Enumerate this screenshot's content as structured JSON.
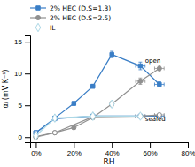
{
  "chart_data": {
    "type": "line",
    "xlabel": "RH",
    "ylabel": "αᵢ (mV K⁻¹)",
    "xlim": [
      -3,
      80
    ],
    "ylim": [
      -0.8,
      16
    ],
    "xticks": [
      {
        "value": 0,
        "label": "0%"
      },
      {
        "value": 20,
        "label": "20%"
      },
      {
        "value": 40,
        "label": "40%"
      },
      {
        "value": 60,
        "label": "60%"
      },
      {
        "value": 80,
        "label": "80%"
      }
    ],
    "yticks": [
      0,
      5,
      10,
      15
    ],
    "grid": false,
    "legend": "top-left",
    "series": [
      {
        "name": "2% HEC (D.S=1.3)",
        "color": "#3a7ec6",
        "marker": "square",
        "line_style": "solid",
        "x": [
          0,
          10,
          20,
          30,
          40,
          55,
          65
        ],
        "values": [
          0.7,
          3.0,
          5.3,
          8.0,
          13.0,
          11.2,
          8.3
        ],
        "xerr": [
          0,
          0,
          0,
          0,
          0,
          2.5,
          2.5
        ],
        "yerr": [
          0.25,
          0.25,
          0.25,
          0.3,
          0.5,
          0.6,
          0.4
        ]
      },
      {
        "name": "2% HEC (D.S=2.5)",
        "color": "#909090",
        "marker": "circle",
        "line_style": "solid",
        "x": [
          0,
          10,
          20,
          30,
          40,
          55,
          65
        ],
        "values": [
          0.1,
          0.7,
          1.5,
          3.1,
          5.2,
          8.8,
          10.8
        ],
        "xerr": [
          0,
          0,
          0,
          0,
          0,
          2.5,
          2.5
        ],
        "yerr": [
          0.2,
          0.2,
          0.2,
          0.3,
          0.4,
          0.5,
          0.5
        ]
      },
      {
        "name": "IL",
        "color": "#add8e6",
        "marker": "diamond-open",
        "line_style": "none",
        "x": [
          30,
          40
        ],
        "values": [
          3.3,
          5.2
        ]
      },
      {
        "color": "#3a7ec6",
        "marker": "square-open",
        "line_style": "solid",
        "x": [
          0,
          10,
          30,
          55,
          65
        ],
        "values": [
          0.7,
          2.9,
          3.3,
          3.3,
          3.3
        ],
        "xerr": [
          0,
          0,
          0,
          2.5,
          2.5
        ],
        "yerr": [
          0.2,
          0.2,
          0.2,
          0.2,
          0.2
        ]
      },
      {
        "color": "#909090",
        "marker": "circle-open",
        "line_style": "solid",
        "x": [
          0,
          10,
          30,
          55,
          65
        ],
        "values": [
          0.0,
          0.7,
          3.2,
          3.3,
          3.5
        ],
        "xerr": [
          0,
          0,
          0,
          2.5,
          2.5
        ],
        "yerr": [
          0.2,
          0.2,
          0.2,
          0.2,
          0.2
        ]
      },
      {
        "color": "#add8e6",
        "marker": "diamond-open",
        "line_style": "solid",
        "x": [
          0,
          10,
          30,
          55
        ],
        "values": [
          0.2,
          3.0,
          3.3,
          3.3
        ]
      }
    ],
    "annotations": [
      {
        "text": "open",
        "x": 57.5,
        "y": 11.7
      },
      {
        "text": "sealed",
        "x": 57.5,
        "y": 2.6
      }
    ]
  }
}
